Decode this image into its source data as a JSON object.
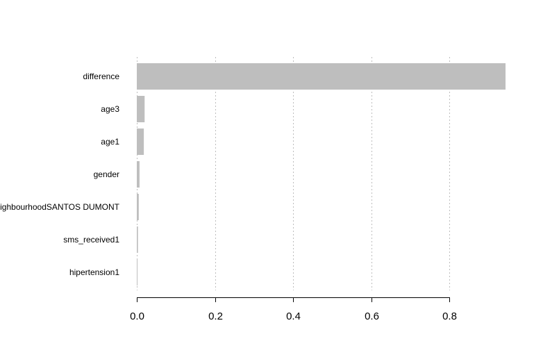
{
  "chart_data": {
    "type": "bar",
    "orientation": "horizontal",
    "title": "",
    "xlabel": "",
    "ylabel": "",
    "categories": [
      "difference",
      "age3",
      "age1",
      "gender",
      "neighbourhoodSANTOS DUMONT",
      "sms_received1",
      "hipertension1"
    ],
    "values": [
      0.944,
      0.02,
      0.018,
      0.007,
      0.005,
      0.003,
      0.001
    ],
    "xlim": [
      0,
      0.944
    ],
    "xticks": [
      0,
      0.2,
      0.4,
      0.6,
      0.8
    ],
    "xtick_labels": [
      "0.0",
      "0.2",
      "0.4",
      "0.6",
      "0.8"
    ],
    "grid": "vertical dotted",
    "legend": "none",
    "bar_color": "#bebebe"
  }
}
